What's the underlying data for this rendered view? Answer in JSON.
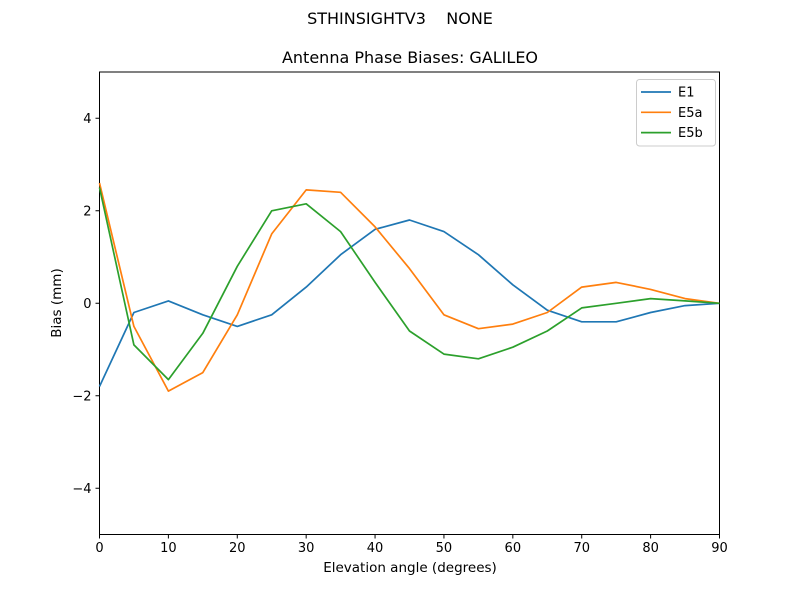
{
  "figure": {
    "suptitle": "STHINSIGHTV3    NONE"
  },
  "chart_data": {
    "type": "line",
    "title": "Antenna Phase Biases: GALILEO",
    "xlabel": "Elevation angle (degrees)",
    "ylabel": "Bias (mm)",
    "xlim": [
      0,
      90
    ],
    "ylim": [
      -5,
      5
    ],
    "x_ticks": [
      0,
      10,
      20,
      30,
      40,
      50,
      60,
      70,
      80,
      90
    ],
    "y_ticks": [
      -4,
      -2,
      0,
      2,
      4
    ],
    "grid": false,
    "legend_position": "upper right",
    "x": [
      0,
      5,
      10,
      15,
      20,
      25,
      30,
      35,
      40,
      45,
      50,
      55,
      60,
      65,
      70,
      75,
      80,
      85,
      90
    ],
    "series": [
      {
        "name": "E1",
        "color": "#1f77b4",
        "values": [
          -1.8,
          -0.2,
          0.05,
          -0.25,
          -0.5,
          -0.25,
          0.35,
          1.05,
          1.6,
          1.8,
          1.55,
          1.05,
          0.4,
          -0.15,
          -0.4,
          -0.4,
          -0.2,
          -0.05,
          0.0
        ]
      },
      {
        "name": "E5a",
        "color": "#ff7f0e",
        "values": [
          2.6,
          -0.5,
          -1.9,
          -1.5,
          -0.25,
          1.5,
          2.45,
          2.4,
          1.65,
          0.75,
          -0.25,
          -0.55,
          -0.45,
          -0.2,
          0.35,
          0.45,
          0.3,
          0.1,
          0.0
        ]
      },
      {
        "name": "E5b",
        "color": "#2ca02c",
        "values": [
          2.5,
          -0.9,
          -1.65,
          -0.65,
          0.8,
          2.0,
          2.15,
          1.55,
          0.45,
          -0.6,
          -1.1,
          -1.2,
          -0.95,
          -0.6,
          -0.1,
          0.0,
          0.1,
          0.05,
          0.0
        ]
      }
    ]
  }
}
